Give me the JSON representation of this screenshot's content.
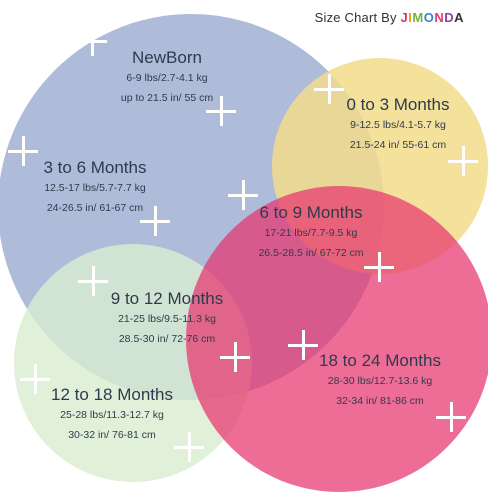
{
  "header": {
    "title": "Size Chart By",
    "brand_letters": [
      "J",
      "I",
      "M",
      "O",
      "N",
      "D",
      "A"
    ]
  },
  "icons": [
    "plus-icon"
  ],
  "colors": {
    "blue_circle": "#a7b6d6",
    "yellow_circle": "#f2dc8a",
    "pink_circle": "#e8356f",
    "green_circle": "#d9eccf"
  },
  "sizes": [
    {
      "label": "NewBorn",
      "weight": "6-9 lbs/2.7-4.1 kg",
      "length": "up to 21.5 in/ 55 cm"
    },
    {
      "label": "0 to 3 Months",
      "weight": "9-12.5 lbs/4.1-5.7 kg",
      "length": "21.5-24 in/ 55-61 cm"
    },
    {
      "label": "3 to 6 Months",
      "weight": "12.5-17 lbs/5.7-7.7 kg",
      "length": "24-26.5 in/ 61-67 cm"
    },
    {
      "label": "6 to 9 Months",
      "weight": "17-21 lbs/7.7-9.5 kg",
      "length": "26.5-28.5 in/ 67-72 cm"
    },
    {
      "label": "9 to 12 Months",
      "weight": "21-25 lbs/9.5-11.3 kg",
      "length": "28.5-30 in/ 72-76 cm"
    },
    {
      "label": "18 to 24 Months",
      "weight": "28-30 lbs/12.7-13.6 kg",
      "length": "32-34 in/ 81-86 cm"
    },
    {
      "label": "12 to 18 Months",
      "weight": "25-28 lbs/11.3-12.7 kg",
      "length": "30-32 in/ 76-81 cm"
    }
  ]
}
